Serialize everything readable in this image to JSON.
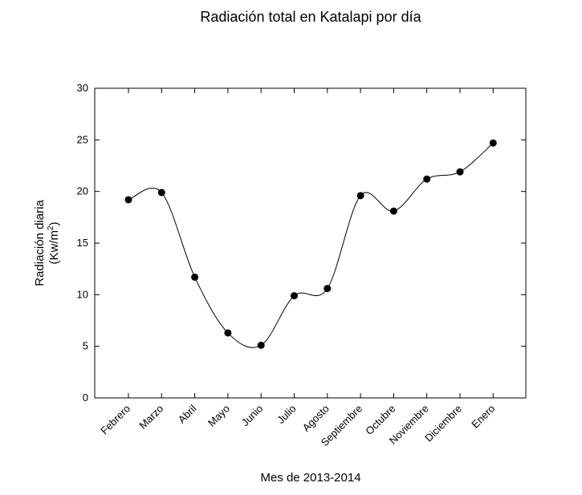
{
  "chart_data": {
    "type": "line",
    "title": "Radiación total en Katalapi por día",
    "xlabel": "Mes de 2013-2014",
    "ylabel_line1": "Radiación diaria",
    "ylabel_line2_prefix": "(Kw/m",
    "ylabel_line2_sup": "2",
    "ylabel_line2_suffix": ")",
    "categories": [
      "Febrero",
      "Marzo",
      "Abril",
      "Mayo",
      "Junio",
      "Julio",
      "Agosto",
      "Septiembre",
      "Octubre",
      "Noviembre",
      "Diciembre",
      "Enero"
    ],
    "values": [
      19.2,
      19.9,
      11.7,
      6.3,
      5.1,
      9.9,
      10.6,
      19.6,
      18.1,
      21.2,
      21.9,
      24.7
    ],
    "ylim": [
      0,
      30
    ],
    "yticks": [
      0,
      5,
      10,
      15,
      20,
      25,
      30
    ],
    "grid": false,
    "smooth": true,
    "marker": "circle",
    "line_color": "#000000",
    "marker_color": "#000000"
  }
}
